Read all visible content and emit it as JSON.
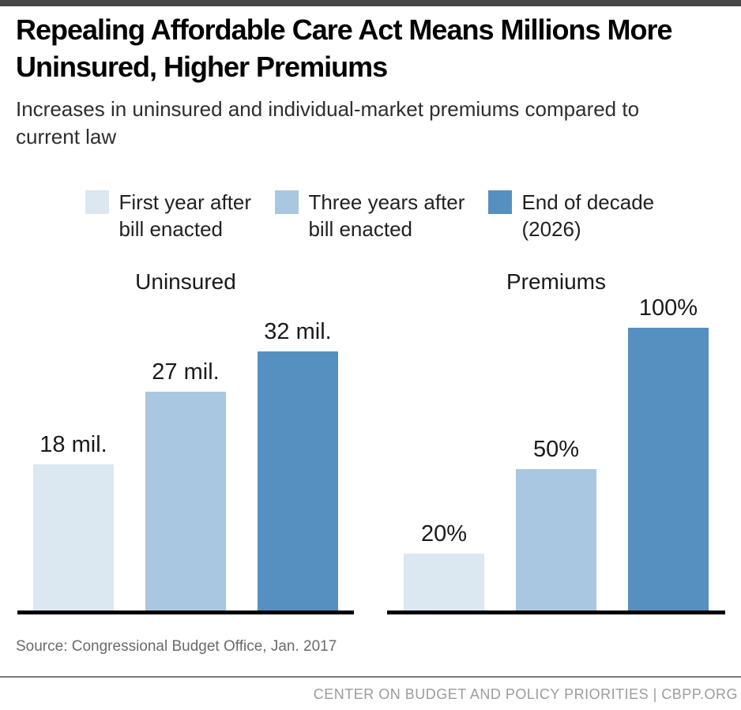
{
  "header": {
    "title": "Repealing Affordable Care Act Means Millions More Uninsured, Higher Premiums",
    "subtitle": "Increases in uninsured and individual-market premiums compared to current law"
  },
  "legend": {
    "items": [
      {
        "label": "First year after bill enacted",
        "color": "#dbe7f1"
      },
      {
        "label": "Three years after bill enacted",
        "color": "#a9c7e0"
      },
      {
        "label": "End of decade (2026)",
        "color": "#5590c0"
      }
    ]
  },
  "chart_data": [
    {
      "type": "bar",
      "title": "Uninsured",
      "categories": [
        "First year after bill enacted",
        "Three years after bill enacted",
        "End of decade (2026)"
      ],
      "values": [
        18,
        27,
        32
      ],
      "labels": [
        "18 mil.",
        "27 mil.",
        "32 mil."
      ],
      "ylim": [
        0,
        32
      ],
      "grid": false,
      "legend_position": "top"
    },
    {
      "type": "bar",
      "title": "Premiums",
      "categories": [
        "First year after bill enacted",
        "Three years after bill enacted",
        "End of decade (2026)"
      ],
      "values": [
        20,
        50,
        100
      ],
      "labels": [
        "20%",
        "50%",
        "100%"
      ],
      "ylim": [
        0,
        100
      ],
      "grid": false,
      "legend_position": "top"
    }
  ],
  "footer": {
    "source": "Source: Congressional Budget Office, Jan. 2017",
    "branding": "CENTER ON BUDGET AND POLICY PRIORITIES | CBPP.ORG"
  },
  "colors": {
    "top_bar": "#474747",
    "axis": "#000000"
  }
}
